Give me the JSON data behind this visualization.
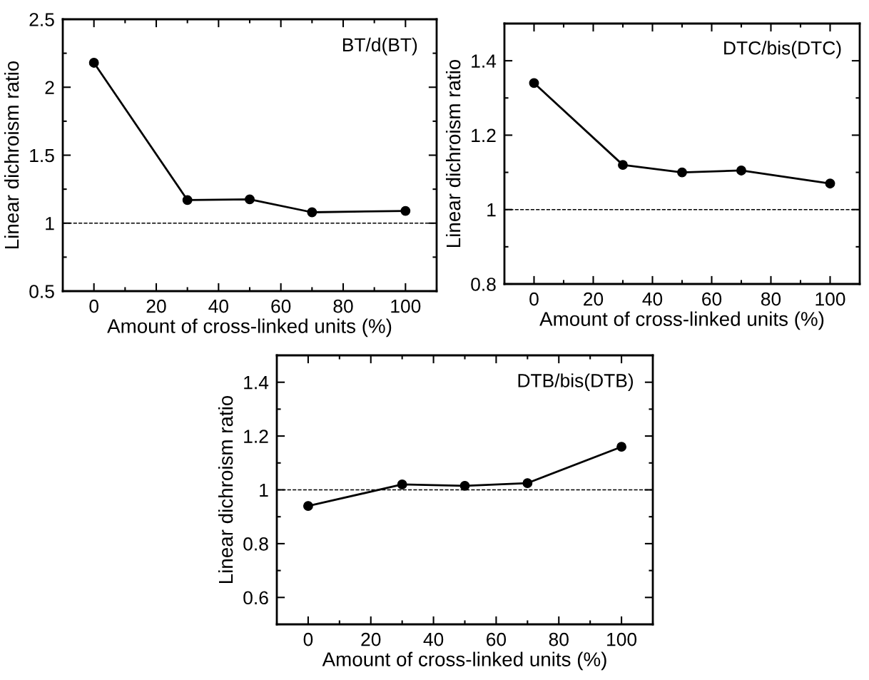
{
  "chart_data": [
    {
      "type": "line",
      "x": [
        0,
        30,
        50,
        70,
        100
      ],
      "xlabel": "Amount of cross-linked units (%)",
      "ylabel": "Linear dichroism ratio",
      "annotations": [
        "BT/d(BT)"
      ],
      "series": [
        {
          "color": "#000000",
          "values": [
            2.18,
            1.17,
            1.175,
            1.08,
            1.09
          ]
        }
      ],
      "xlim": [
        -10,
        110
      ],
      "xticks": [
        0,
        20,
        40,
        60,
        80,
        100
      ],
      "ylim": [
        0.5,
        2.5
      ],
      "yticks": [
        0.5,
        1,
        1.5,
        2,
        2.5
      ],
      "marker": "circle",
      "line_style": "solid",
      "grid": false,
      "legend": false,
      "ref_lines": [
        {
          "axis": "y",
          "value": 1,
          "label": null,
          "color": "#000000",
          "line_style": "dashed"
        }
      ]
    },
    {
      "type": "line",
      "x": [
        0,
        30,
        50,
        70,
        100
      ],
      "xlabel": "Amount of cross-linked units (%)",
      "ylabel": "Linear dichroism ratio",
      "annotations": [
        "DTC/bis(DTC)"
      ],
      "series": [
        {
          "color": "#000000",
          "values": [
            1.34,
            1.12,
            1.1,
            1.105,
            1.07
          ]
        }
      ],
      "xlim": [
        -10,
        110
      ],
      "xticks": [
        0,
        20,
        40,
        60,
        80,
        100
      ],
      "ylim": [
        0.8,
        1.5
      ],
      "yticks": [
        0.8,
        1,
        1.2,
        1.4
      ],
      "marker": "circle",
      "line_style": "solid",
      "grid": false,
      "legend": false,
      "ref_lines": [
        {
          "axis": "y",
          "value": 1,
          "label": null,
          "color": "#000000",
          "line_style": "dashed"
        }
      ]
    },
    {
      "type": "line",
      "x": [
        0,
        30,
        50,
        70,
        100
      ],
      "xlabel": "Amount of cross-linked units (%)",
      "ylabel": "Linear dichroism ratio",
      "annotations": [
        "DTB/bis(DTB)"
      ],
      "series": [
        {
          "color": "#000000",
          "values": [
            0.94,
            1.02,
            1.015,
            1.025,
            1.16
          ]
        }
      ],
      "xlim": [
        -10,
        110
      ],
      "xticks": [
        0,
        20,
        40,
        60,
        80,
        100
      ],
      "ylim": [
        0.5,
        1.5
      ],
      "yticks": [
        0.6,
        0.8,
        1,
        1.2,
        1.4
      ],
      "marker": "circle",
      "line_style": "solid",
      "grid": false,
      "legend": false,
      "ref_lines": [
        {
          "axis": "y",
          "value": 1,
          "label": null,
          "color": "#000000",
          "line_style": "dashed"
        }
      ]
    }
  ]
}
